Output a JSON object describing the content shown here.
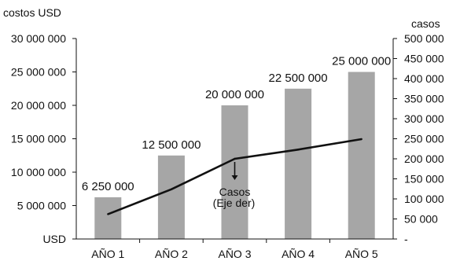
{
  "chart_data": {
    "type": "bar",
    "categories": [
      "AÑO 1",
      "AÑO 2",
      "AÑO 3",
      "AÑO 4",
      "AÑO 5"
    ],
    "series": [
      {
        "type": "bar",
        "axis": "left",
        "values": [
          6250000,
          12500000,
          20000000,
          22500000,
          25000000
        ],
        "labels": [
          "6 250 000",
          "12 500 000",
          "20 000 000",
          "22 500 000",
          "25 000 000"
        ],
        "color": "#a6a6a6"
      },
      {
        "name": "Casos",
        "type": "line",
        "axis": "right",
        "values": [
          62000,
          124000,
          200000,
          223000,
          249000
        ],
        "color": "#111111"
      }
    ],
    "y_left": {
      "label": "costos USD",
      "unit": "USD",
      "ylim": [
        0,
        30000000
      ],
      "tick_values": [
        5000000,
        10000000,
        15000000,
        20000000,
        25000000,
        30000000
      ],
      "tick_labels": [
        "5 000 000",
        "10 000 000",
        "15 000 000",
        "20 000 000",
        "25 000 000",
        "30 000 000"
      ]
    },
    "y_right": {
      "label": "casos",
      "ylim": [
        0,
        500000
      ],
      "tick_values": [
        0,
        50000,
        100000,
        150000,
        200000,
        250000,
        300000,
        350000,
        400000,
        450000,
        500000
      ],
      "tick_labels": [
        "-",
        "50 000",
        "100 000",
        "150 000",
        "200 000",
        "250 000",
        "300 000",
        "350 000",
        "400 000",
        "450 000",
        "500 000"
      ]
    },
    "annotation": {
      "lines": [
        "Casos",
        "(Eje der)"
      ],
      "x_category": 2.5,
      "y_value": 3
    },
    "grid": false,
    "colors": {
      "bar": "#a6a6a6",
      "line": "#111111",
      "axis": "#111111"
    }
  }
}
